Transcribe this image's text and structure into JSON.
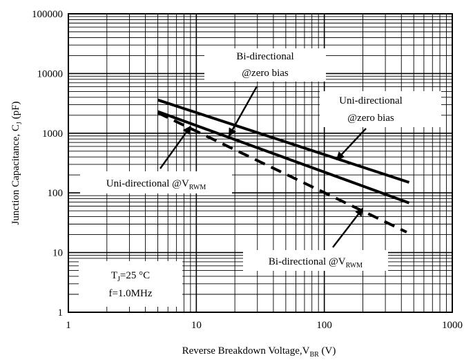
{
  "chart_data": {
    "type": "line",
    "xlabel": "Reverse  Breakdown Voltage,V",
    "xlabel_sub": "BR",
    "xlabel_unit": " (V)",
    "ylabel": "Junction Capacitance, C",
    "ylabel_sub": "J",
    "ylabel_unit": " (pF)",
    "x_scale": "log",
    "y_scale": "log",
    "xlim": [
      1,
      1000
    ],
    "ylim": [
      1,
      100000
    ],
    "x_ticks": [
      "1",
      "10",
      "100",
      "1000"
    ],
    "y_ticks": [
      "1",
      "10",
      "100",
      "1000",
      "10000",
      "100000"
    ],
    "grid": true,
    "series": [
      {
        "id": "uni-zero",
        "style": "solid",
        "x": [
          5,
          460
        ],
        "y": [
          3600,
          150
        ]
      },
      {
        "id": "bi-zero",
        "style": "solid",
        "x": [
          5,
          460
        ],
        "y": [
          2300,
          68
        ]
      },
      {
        "id": "uni-vrwm",
        "style": "dashed",
        "x": [
          5,
          440
        ],
        "y": [
          2200,
          22
        ]
      }
    ],
    "annotations": [
      {
        "id": "bi-zero-label",
        "lines": [
          "Bi-directional",
          "@zero bias"
        ],
        "arrow_to": [
          18,
          900
        ]
      },
      {
        "id": "uni-zero-label",
        "lines": [
          "Uni-directional",
          "@zero bias"
        ],
        "arrow_to": [
          125,
          360
        ]
      },
      {
        "id": "uni-vrwm-label",
        "lines": [
          "Uni-directional  @V"
        ],
        "sub": "RWM",
        "arrow_to": [
          9,
          1300
        ]
      },
      {
        "id": "bi-vrwm-label",
        "lines": [
          "Bi-directional @V"
        ],
        "sub": "RWM",
        "arrow_to": [
          200,
          55
        ]
      },
      {
        "id": "conditions-label",
        "lines": [
          "T",
          "f=1.0MHz"
        ],
        "t_sub": "J",
        "t_suffix": "=25 °C"
      }
    ]
  }
}
